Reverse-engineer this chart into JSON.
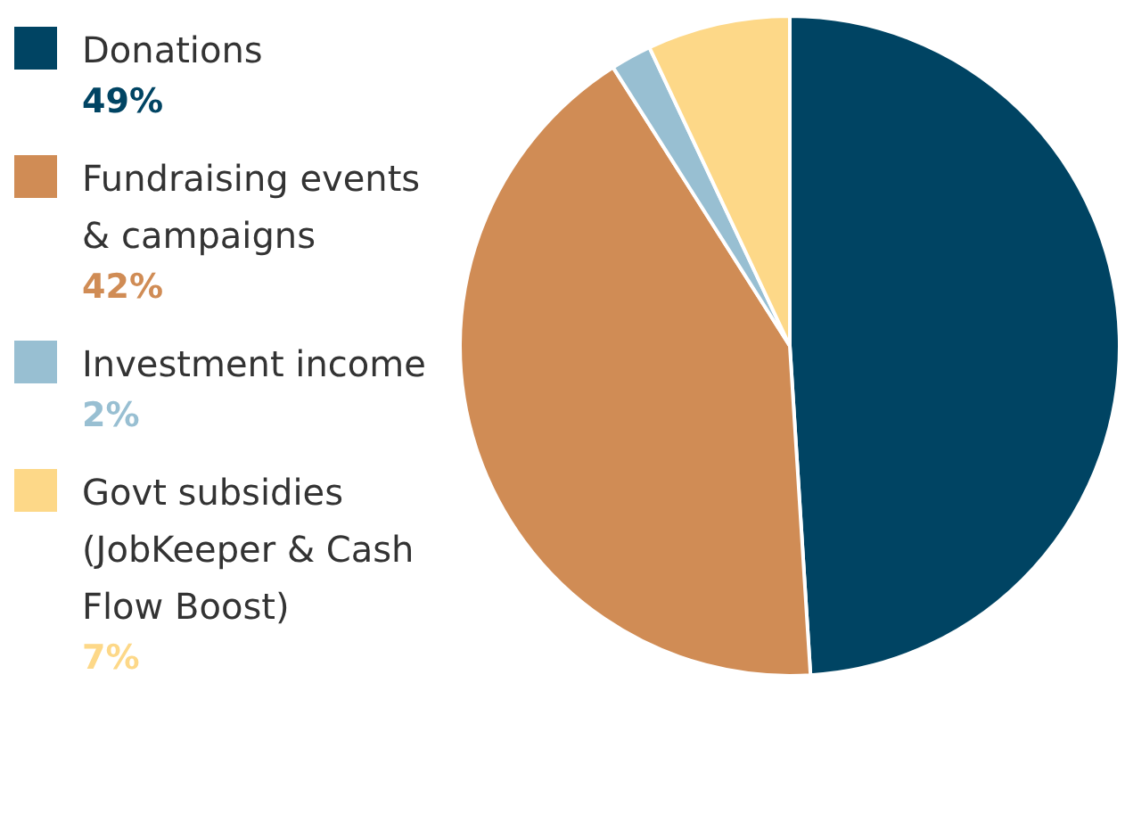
{
  "chart_data": {
    "type": "pie",
    "categories": [
      "Donations",
      "Fundraising events & campaigns",
      "Investment income",
      "Govt subsidies (JobKeeper & Cash Flow Boost)"
    ],
    "values": [
      49,
      42,
      2,
      7
    ],
    "colors": [
      "#004463",
      "#d08c55",
      "#98bfd2",
      "#fdd888"
    ],
    "value_labels": [
      "49%",
      "42%",
      "2%",
      "7%"
    ],
    "legend": "left"
  }
}
